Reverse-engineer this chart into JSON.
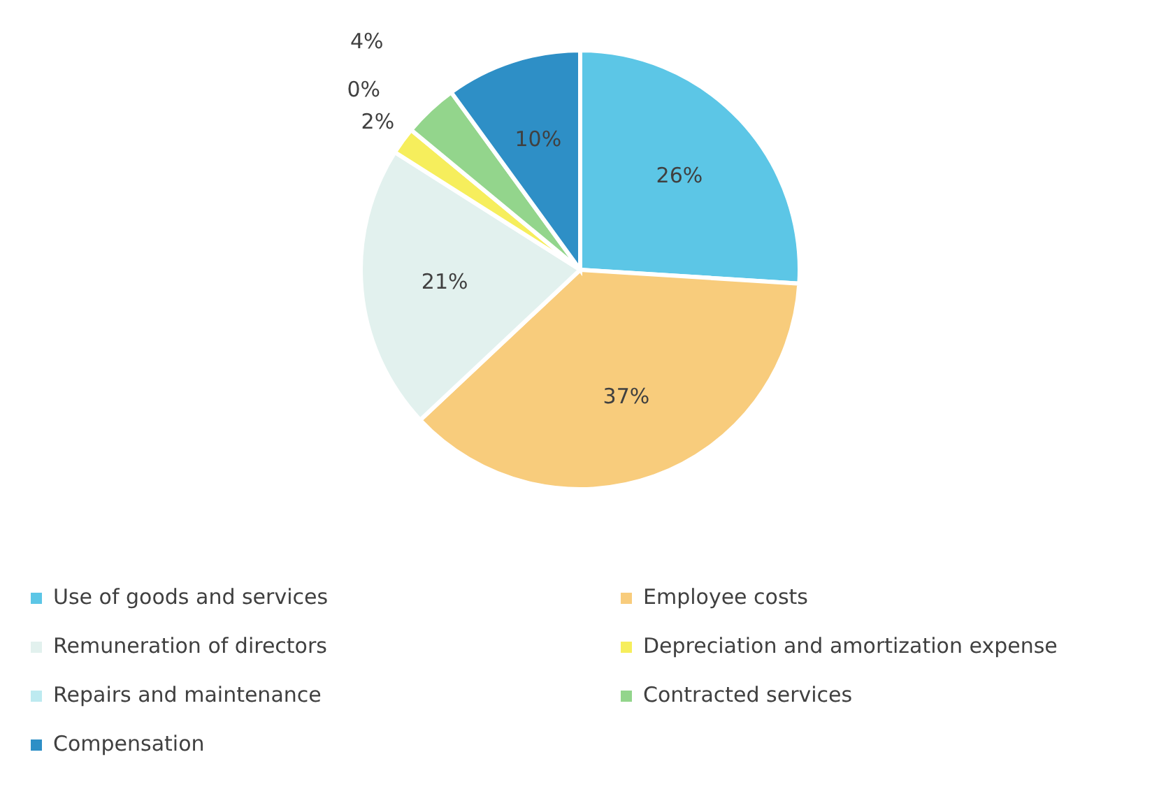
{
  "chart_data": {
    "type": "pie",
    "categories": [
      "Use of goods and services",
      "Employee costs",
      "Remuneration of directors",
      "Depreciation and amortization expense",
      "Repairs and maintenance",
      "Contracted services",
      "Compensation"
    ],
    "values": [
      26,
      37,
      21,
      2,
      0,
      4,
      10
    ],
    "colors": [
      "#5cc6e6",
      "#f8cc7c",
      "#e2f1ee",
      "#f6ee5c",
      "#bdeaf0",
      "#93d58c",
      "#2e8fc6"
    ],
    "value_labels": [
      "26%",
      "37%",
      "21%",
      "2%",
      "0%",
      "4%",
      "10%"
    ],
    "legend": "bottom"
  }
}
